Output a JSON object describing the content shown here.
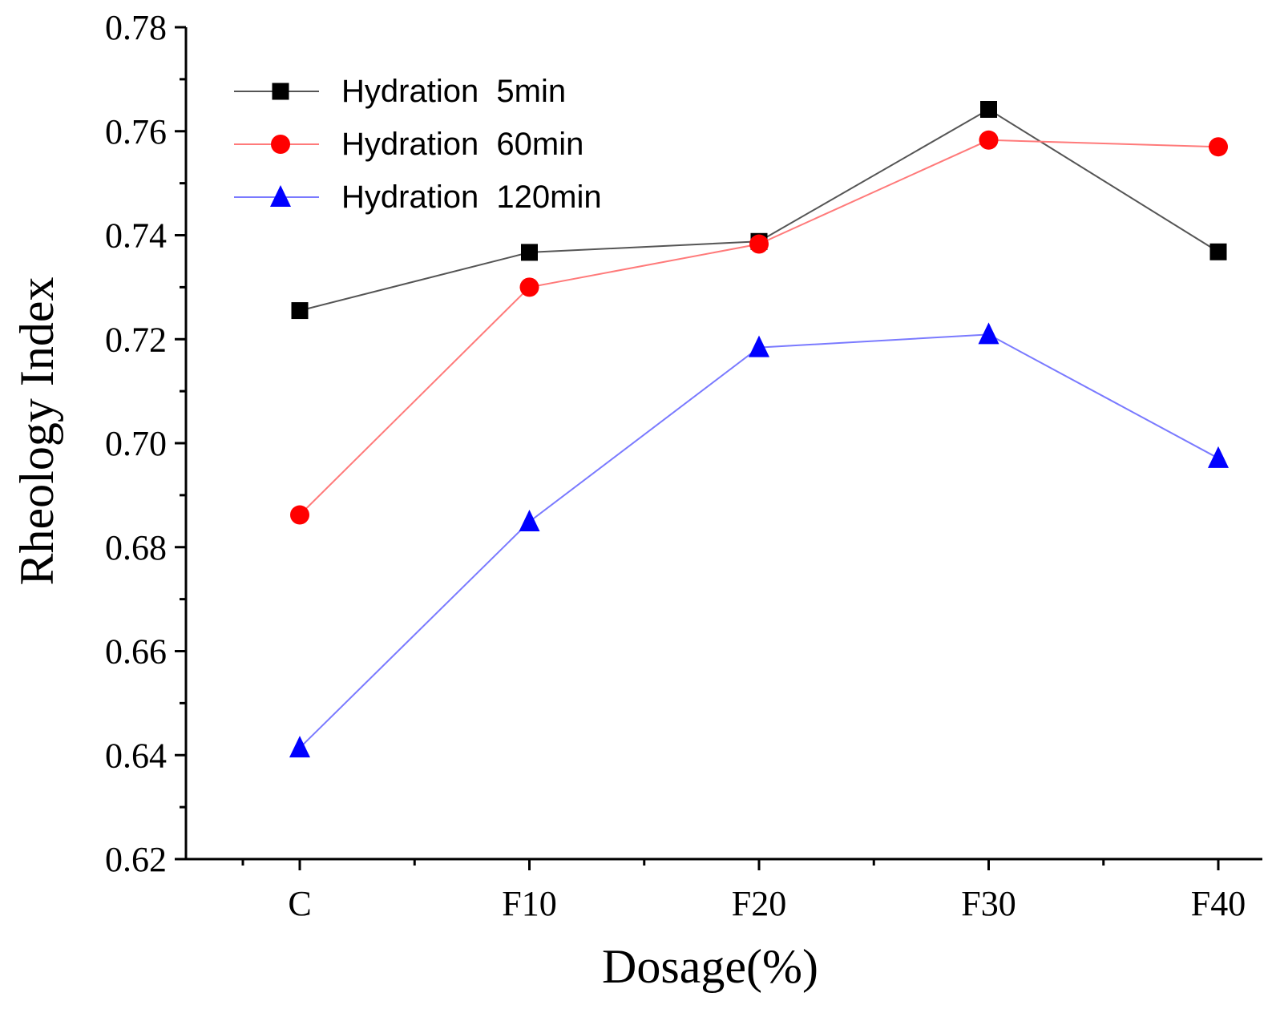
{
  "chart_data": {
    "type": "line",
    "title": "",
    "xlabel": "Dosage(%)",
    "ylabel": "Rheology Index",
    "categories": [
      "C",
      "F10",
      "F20",
      "F30",
      "F40"
    ],
    "ylim": [
      0.62,
      0.78
    ],
    "yticks": [
      0.62,
      0.64,
      0.66,
      0.68,
      0.7,
      0.72,
      0.74,
      0.76,
      0.78
    ],
    "ytick_labels": [
      "0.62",
      "0.64",
      "0.66",
      "0.68",
      "0.70",
      "0.72",
      "0.74",
      "0.76",
      "0.78"
    ],
    "grid": false,
    "legend_position": "top-left",
    "series": [
      {
        "name": "Hydration  5min",
        "color": "#000000",
        "line_color": "#555555",
        "marker": "square",
        "values": [
          0.7255,
          0.7367,
          0.7388,
          0.7642,
          0.7368
        ]
      },
      {
        "name": "Hydration  60min",
        "color": "#ff0000",
        "line_color": "#ff7a7a",
        "marker": "circle",
        "values": [
          0.6862,
          0.73,
          0.7383,
          0.7583,
          0.757
        ]
      },
      {
        "name": "Hydration  120min",
        "color": "#0000ff",
        "line_color": "#7a7aff",
        "marker": "triangle",
        "values": [
          0.6414,
          0.6849,
          0.7184,
          0.7209,
          0.6971
        ]
      }
    ]
  }
}
